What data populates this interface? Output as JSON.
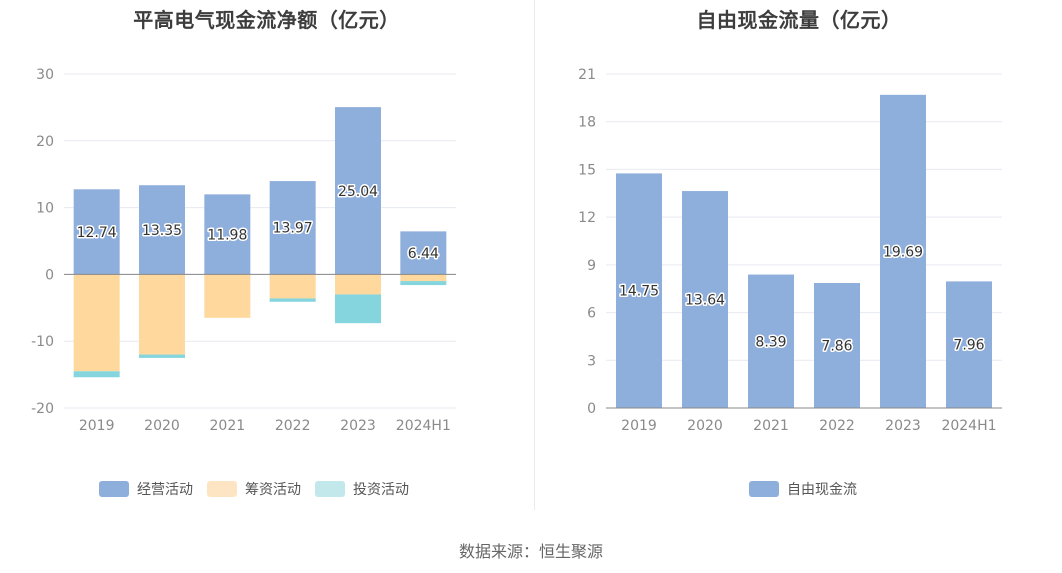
{
  "colors": {
    "operating": "#8eaedc",
    "financing": "#fed89c",
    "investing": "#84d5dd",
    "free_cash_flow": "#8eaedc",
    "grid": "#e6e9f0",
    "axis": "#888888"
  },
  "source": "数据来源：恒生聚源",
  "chart_data": [
    {
      "type": "bar",
      "stacked": true,
      "title": "平高电气现金流净额（亿元）",
      "categories": [
        "2019",
        "2020",
        "2021",
        "2022",
        "2023",
        "2024H1"
      ],
      "ylim": [
        -20,
        30
      ],
      "yticks": [
        30,
        20,
        10,
        0,
        -10,
        -20
      ],
      "grid": true,
      "legend": "bottom",
      "series": [
        {
          "name": "经营活动",
          "values": [
            12.74,
            13.35,
            11.98,
            13.97,
            25.04,
            6.44
          ],
          "show_labels": true
        },
        {
          "name": "筹资活动",
          "values": [
            -14.5,
            -12.0,
            -6.5,
            -3.6,
            -3.0,
            -1.0
          ]
        },
        {
          "name": "投资活动",
          "values": [
            -0.9,
            -0.5,
            0,
            -0.5,
            -4.3,
            -0.6
          ]
        }
      ]
    },
    {
      "type": "bar",
      "title": "自由现金流量（亿元）",
      "categories": [
        "2019",
        "2020",
        "2021",
        "2022",
        "2023",
        "2024H1"
      ],
      "ylim": [
        0,
        21
      ],
      "yticks": [
        21,
        18,
        15,
        12,
        9,
        6,
        3,
        0
      ],
      "grid": true,
      "legend": "bottom",
      "series": [
        {
          "name": "自由现金流",
          "values": [
            14.75,
            13.64,
            8.39,
            7.86,
            19.69,
            7.96
          ],
          "show_labels": true
        }
      ]
    }
  ]
}
